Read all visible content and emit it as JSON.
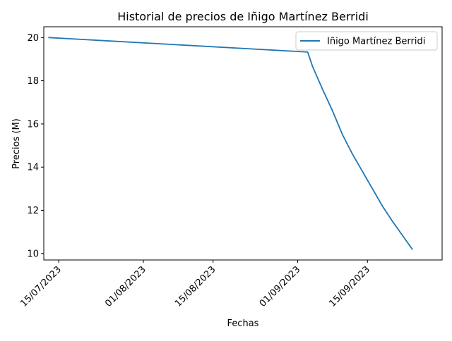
{
  "chart_data": {
    "type": "line",
    "title": "Historial de precios de Iñigo Martínez Berridi",
    "xlabel": "Fechas",
    "ylabel": "Precios (M)",
    "x_axis": {
      "type": "date",
      "range": [
        "2023-07-12",
        "2023-09-30"
      ],
      "ticks": [
        {
          "value": "2023-07-15",
          "label": "15/07/2023"
        },
        {
          "value": "2023-08-01",
          "label": "01/08/2023"
        },
        {
          "value": "2023-08-15",
          "label": "15/08/2023"
        },
        {
          "value": "2023-09-01",
          "label": "01/09/2023"
        },
        {
          "value": "2023-09-15",
          "label": "15/09/2023"
        }
      ]
    },
    "y_axis": {
      "range": [
        9.7,
        20.5
      ],
      "ticks": [
        10,
        12,
        14,
        16,
        18,
        20
      ]
    },
    "grid": false,
    "legend_position": "top-right",
    "series": [
      {
        "name": "Iñigo Martínez Berridi",
        "color": "#1f77b4",
        "points": [
          {
            "x": "2023-07-13",
            "y": 20.0
          },
          {
            "x": "2023-09-03",
            "y": 19.33
          },
          {
            "x": "2023-09-04",
            "y": 18.65
          },
          {
            "x": "2023-09-06",
            "y": 17.6
          },
          {
            "x": "2023-09-08",
            "y": 16.6
          },
          {
            "x": "2023-09-10",
            "y": 15.5
          },
          {
            "x": "2023-09-12",
            "y": 14.6
          },
          {
            "x": "2023-09-14",
            "y": 13.8
          },
          {
            "x": "2023-09-16",
            "y": 13.0
          },
          {
            "x": "2023-09-18",
            "y": 12.2
          },
          {
            "x": "2023-09-20",
            "y": 11.5
          },
          {
            "x": "2023-09-22",
            "y": 10.85
          },
          {
            "x": "2023-09-24",
            "y": 10.2
          }
        ]
      }
    ]
  }
}
